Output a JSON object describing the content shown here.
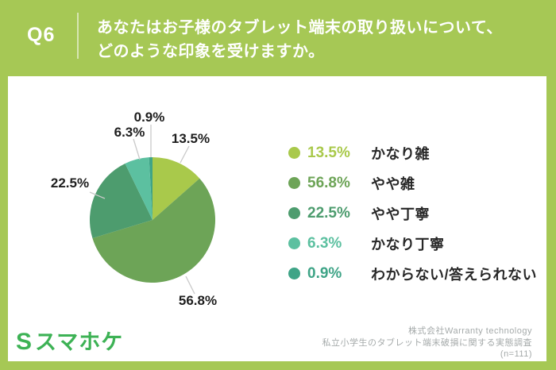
{
  "header": {
    "tag": "Q6",
    "question_line1": "あなたはお子様のタブレット端末の取り扱いについて、",
    "question_line2": "どのような印象を受けますか。"
  },
  "chart_data": {
    "type": "pie",
    "title": "",
    "unit": "%",
    "start_angle": "top",
    "direction": "clockwise",
    "slices": [
      {
        "label": "かなり雑",
        "value": 13.5,
        "color": "#a9c94b"
      },
      {
        "label": "やや雑",
        "value": 56.8,
        "color": "#6da457"
      },
      {
        "label": "やや丁寧",
        "value": 22.5,
        "color": "#4d9c6e"
      },
      {
        "label": "かなり丁寧",
        "value": 6.3,
        "color": "#5cc0a0"
      },
      {
        "label": "わからない/答えられない",
        "value": 0.9,
        "color": "#3fa487"
      }
    ],
    "legend_position": "right"
  },
  "footer": {
    "logo_mark": "S",
    "logo_text": "スマホケ",
    "credit_line1": "株式会社Warranty technology",
    "credit_line2": "私立小学生のタブレット端末破損に関する実態調査",
    "credit_line3": "(n=111)"
  },
  "colors": {
    "page_bg": "#a6c855",
    "card_bg": "#ffffff",
    "header_text": "#ffffff",
    "pie_label_text": "#1e1e1e",
    "legend_label_text": "#282828",
    "leader_line": "#c9c9c9",
    "logo_green": "#3db255",
    "credit_gray": "#a5aaaa"
  }
}
